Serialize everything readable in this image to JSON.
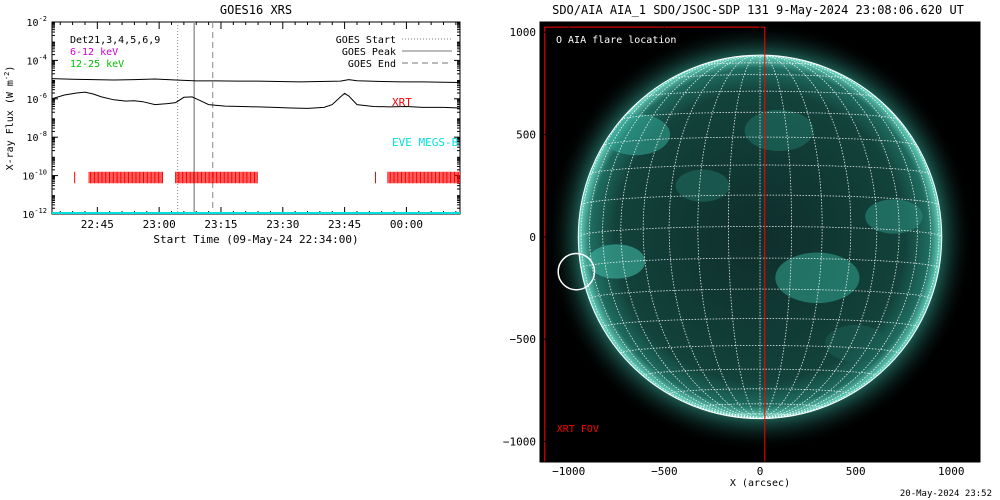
{
  "chart_data": [
    {
      "type": "line",
      "title": "GOES16 XRS",
      "xlabel": "Start Time (09-May-24 22:34:00)",
      "ylabel": "X-ray Flux (W m",
      "ylabel_sup": "-2",
      "ylabel_close": ")",
      "x_ticks": [
        "22:45",
        "23:00",
        "23:15",
        "23:30",
        "23:45",
        "00:00"
      ],
      "x_tick_minutes": [
        11,
        26,
        41,
        56,
        71,
        86
      ],
      "xlim_minutes": [
        0,
        99
      ],
      "y_scale": "log",
      "ylim_exp": [
        -12,
        -2
      ],
      "y_ticks": [
        {
          "exp": -2,
          "base": "10",
          "sup": "-2"
        },
        {
          "exp": -4,
          "base": "10",
          "sup": "-4"
        },
        {
          "exp": -6,
          "base": "10",
          "sup": "-6"
        },
        {
          "exp": -8,
          "base": "10",
          "sup": "-8"
        },
        {
          "exp": -10,
          "base": "10",
          "sup": "-10"
        },
        {
          "exp": -12,
          "base": "10",
          "sup": "-12"
        }
      ],
      "legend_left": [
        {
          "label": "Det21,3,4,5,6,9",
          "color": "#000000"
        },
        {
          "label": "6-12 keV",
          "color": "#d000d0"
        },
        {
          "label": "12-25 keV",
          "color": "#00c000"
        }
      ],
      "legend_right": [
        {
          "label": "GOES Start",
          "style": "dotted"
        },
        {
          "label": "GOES Peak",
          "style": "solid"
        },
        {
          "label": "GOES End",
          "style": "dashed"
        }
      ],
      "goes_start_min": 30.5,
      "goes_peak_min": 34.5,
      "goes_end_min": 39.0,
      "annotations": [
        {
          "text": "XRT",
          "color": "#ff0000"
        },
        {
          "text": "EVE MEGS-B",
          "color": "#00e0e0"
        }
      ],
      "series": [
        {
          "color": "#000000",
          "points": [
            [
              0,
              -4.95
            ],
            [
              5,
              -4.98
            ],
            [
              10,
              -5.0
            ],
            [
              15,
              -5.02
            ],
            [
              20,
              -5.0
            ],
            [
              25,
              -4.97
            ],
            [
              30,
              -5.02
            ],
            [
              35,
              -5.07
            ],
            [
              40,
              -5.07
            ],
            [
              45,
              -5.08
            ],
            [
              50,
              -5.08
            ],
            [
              55,
              -5.1
            ],
            [
              60,
              -5.12
            ],
            [
              65,
              -5.1
            ],
            [
              70,
              -5.08
            ],
            [
              72,
              -5.0
            ],
            [
              74,
              -5.06
            ],
            [
              80,
              -5.1
            ],
            [
              85,
              -5.12
            ],
            [
              90,
              -5.12
            ],
            [
              95,
              -5.14
            ],
            [
              99,
              -5.15
            ]
          ]
        },
        {
          "color": "#000000",
          "points": [
            [
              0,
              -6.0
            ],
            [
              3,
              -5.8
            ],
            [
              6,
              -5.7
            ],
            [
              8,
              -5.65
            ],
            [
              10,
              -5.75
            ],
            [
              12,
              -5.9
            ],
            [
              15,
              -6.05
            ],
            [
              18,
              -6.12
            ],
            [
              20,
              -6.1
            ],
            [
              22,
              -6.15
            ],
            [
              25,
              -6.3
            ],
            [
              28,
              -6.25
            ],
            [
              30,
              -6.2
            ],
            [
              32,
              -5.92
            ],
            [
              34,
              -5.9
            ],
            [
              36,
              -6.1
            ],
            [
              38,
              -6.3
            ],
            [
              42,
              -6.38
            ],
            [
              46,
              -6.4
            ],
            [
              50,
              -6.42
            ],
            [
              54,
              -6.45
            ],
            [
              58,
              -6.48
            ],
            [
              62,
              -6.5
            ],
            [
              66,
              -6.45
            ],
            [
              68,
              -6.3
            ],
            [
              70,
              -5.9
            ],
            [
              71,
              -5.72
            ],
            [
              72,
              -5.85
            ],
            [
              74,
              -6.3
            ],
            [
              78,
              -6.4
            ],
            [
              82,
              -6.42
            ],
            [
              86,
              -6.4
            ],
            [
              90,
              -6.45
            ],
            [
              95,
              -6.45
            ],
            [
              99,
              -6.48
            ]
          ]
        },
        {
          "color": "#00e0e0",
          "points": [
            [
              0,
              -11.95
            ],
            [
              99,
              -11.95
            ]
          ]
        }
      ],
      "xrt_segments_min": [
        [
          5.5,
          5.8
        ],
        [
          9.0,
          27.0
        ],
        [
          30.0,
          50.0
        ],
        [
          78.5,
          78.8
        ],
        [
          81.5,
          99.0
        ]
      ]
    },
    {
      "type": "image",
      "title": "SDO/AIA AIA_1 SDO/JSOC-SDP 131  9-May-2024 23:08:06.620 UT",
      "xlabel": "X (arcsec)",
      "x_ticks": [
        -1000,
        -500,
        0,
        500,
        1000
      ],
      "y_ticks": [
        1000,
        500,
        0,
        -500,
        -1000
      ],
      "xlim": [
        -1150,
        1150
      ],
      "ylim": [
        -1100,
        1050
      ],
      "legend": "O AIA flare location",
      "fov_label": "XRT FOV",
      "xrt_fov": {
        "x0": -1125,
        "x1": 25,
        "y0": -1100,
        "y1": 1025
      },
      "sun_center": [
        0,
        0
      ],
      "sun_radius": 950,
      "flare_location": [
        -960,
        -170
      ],
      "flare_radius": 95,
      "timestamp": "20-May-2024 23:52"
    }
  ]
}
